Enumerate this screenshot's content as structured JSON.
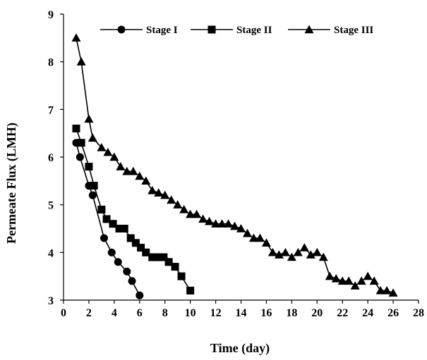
{
  "chart_data": {
    "type": "line",
    "xlabel": "Time (day)",
    "ylabel": "Permeate Flux (LMH)",
    "xlim": [
      0,
      28
    ],
    "ylim": [
      3,
      9
    ],
    "x_ticks": [
      0,
      2,
      4,
      6,
      8,
      10,
      12,
      14,
      16,
      18,
      20,
      22,
      24,
      26,
      28
    ],
    "y_ticks": [
      3,
      4,
      5,
      6,
      7,
      8,
      9
    ],
    "grid": false,
    "legend_position": "top",
    "series": [
      {
        "name": "Stage I",
        "marker": "circle",
        "color": "#000000",
        "x": [
          1,
          1.3,
          2,
          2.3,
          3.2,
          3.8,
          4.3,
          5,
          5.4,
          6
        ],
        "y": [
          6.3,
          6.0,
          5.4,
          5.2,
          4.3,
          4.0,
          3.8,
          3.6,
          3.4,
          3.1
        ]
      },
      {
        "name": "Stage II",
        "marker": "square",
        "color": "#000000",
        "x": [
          1,
          1.4,
          2,
          2.4,
          3,
          3.4,
          3.9,
          4.4,
          4.8,
          5.3,
          5.7,
          6.1,
          6.5,
          7.0,
          7.4,
          7.9,
          8.3,
          8.8,
          9.3,
          10
        ],
        "y": [
          6.6,
          6.3,
          5.8,
          5.4,
          4.9,
          4.7,
          4.6,
          4.5,
          4.5,
          4.3,
          4.2,
          4.1,
          4.0,
          3.9,
          3.9,
          3.9,
          3.8,
          3.7,
          3.5,
          3.2
        ]
      },
      {
        "name": "Stage III",
        "marker": "triangle",
        "color": "#000000",
        "x": [
          1,
          1.4,
          2,
          2.3,
          3,
          3.5,
          4,
          4.5,
          5,
          5.5,
          6,
          6.5,
          7,
          7.5,
          8,
          8.5,
          9,
          9.5,
          10,
          10.5,
          11,
          11.5,
          12,
          12.5,
          13,
          13.5,
          14,
          14.5,
          15,
          15.5,
          16,
          16.5,
          17,
          17.5,
          18,
          18.5,
          19,
          19.5,
          20,
          20.5,
          21,
          21.5,
          22,
          22.5,
          23,
          23.5,
          24,
          24.5,
          25,
          25.5,
          26
        ],
        "y": [
          8.5,
          8.0,
          6.8,
          6.4,
          6.2,
          6.1,
          6.0,
          5.8,
          5.7,
          5.7,
          5.6,
          5.5,
          5.3,
          5.25,
          5.2,
          5.1,
          5.0,
          4.9,
          4.8,
          4.8,
          4.7,
          4.65,
          4.6,
          4.6,
          4.6,
          4.55,
          4.5,
          4.4,
          4.3,
          4.3,
          4.2,
          4.0,
          3.95,
          4.0,
          3.9,
          4.0,
          4.1,
          3.95,
          4.0,
          3.9,
          3.5,
          3.45,
          3.4,
          3.4,
          3.3,
          3.4,
          3.5,
          3.4,
          3.2,
          3.2,
          3.15
        ]
      }
    ]
  }
}
